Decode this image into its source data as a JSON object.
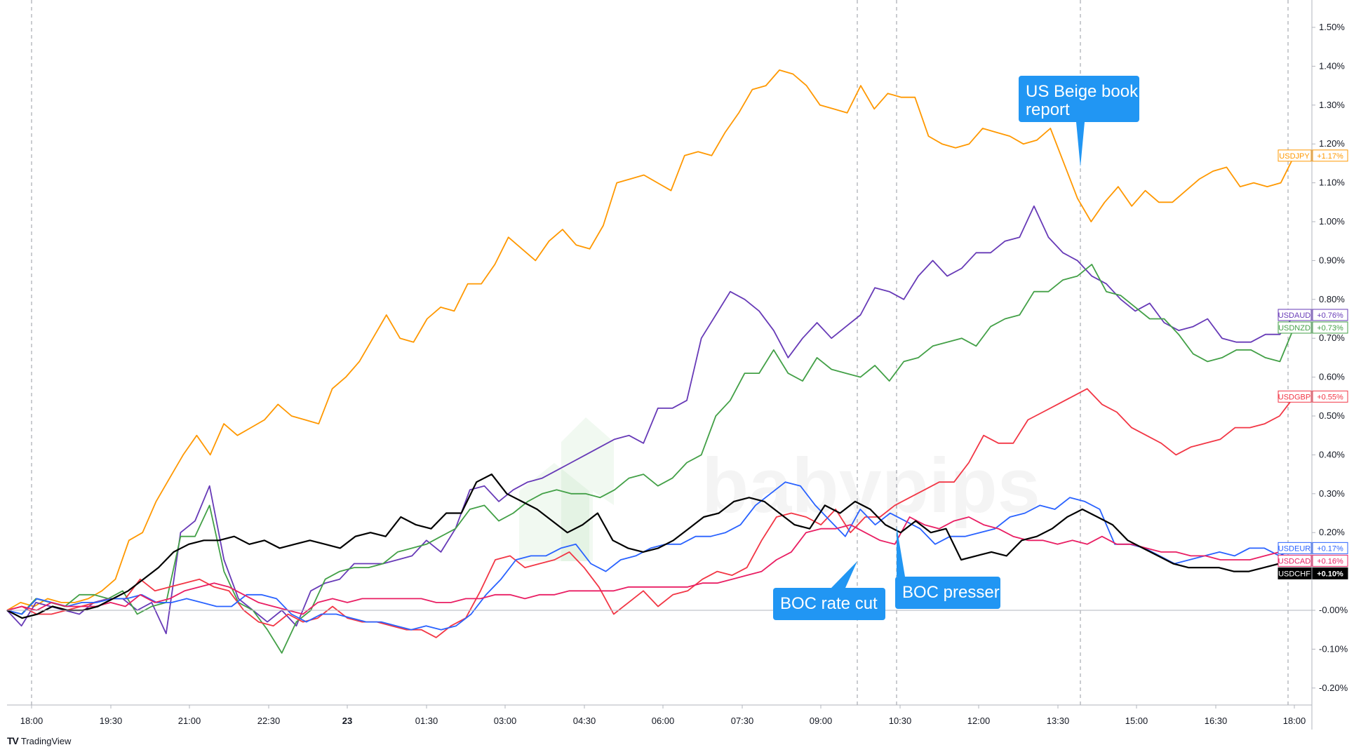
{
  "chart_data": {
    "type": "line",
    "x_ticks": [
      "18:00",
      "19:30",
      "21:00",
      "22:30",
      "23",
      "01:30",
      "03:00",
      "04:30",
      "06:00",
      "07:30",
      "09:00",
      "10:30",
      "12:00",
      "13:30",
      "15:00",
      "16:30",
      "18:00"
    ],
    "y_ticks": [
      "1.50%",
      "1.40%",
      "1.30%",
      "1.20%",
      "1.10%",
      "1.00%",
      "0.90%",
      "0.80%",
      "0.70%",
      "0.60%",
      "0.50%",
      "0.40%",
      "0.30%",
      "0.20%",
      "0.10%",
      "-0.00%",
      "-0.10%",
      "-0.20%"
    ],
    "ylim": [
      -0.25,
      1.58
    ],
    "series": [
      {
        "name": "USDJPY",
        "color": "#ff9800",
        "last_label": "+1.17%",
        "values": [
          0.0,
          0.02,
          0.01,
          0.03,
          0.02,
          0.02,
          0.03,
          0.05,
          0.08,
          0.18,
          0.2,
          0.28,
          0.34,
          0.4,
          0.45,
          0.4,
          0.48,
          0.45,
          0.47,
          0.49,
          0.53,
          0.5,
          0.49,
          0.48,
          0.57,
          0.6,
          0.64,
          0.7,
          0.76,
          0.7,
          0.69,
          0.75,
          0.78,
          0.77,
          0.84,
          0.84,
          0.89,
          0.96,
          0.93,
          0.9,
          0.95,
          0.98,
          0.94,
          0.93,
          0.99,
          1.1,
          1.11,
          1.12,
          1.1,
          1.08,
          1.17,
          1.18,
          1.17,
          1.23,
          1.28,
          1.34,
          1.35,
          1.39,
          1.38,
          1.35,
          1.3,
          1.29,
          1.28,
          1.35,
          1.29,
          1.33,
          1.32,
          1.32,
          1.22,
          1.2,
          1.19,
          1.2,
          1.24,
          1.23,
          1.22,
          1.2,
          1.21,
          1.24,
          1.15,
          1.06,
          1.0,
          1.05,
          1.09,
          1.04,
          1.08,
          1.05,
          1.05,
          1.08,
          1.11,
          1.13,
          1.14,
          1.09,
          1.1,
          1.09,
          1.1,
          1.17
        ]
      },
      {
        "name": "USDAUD",
        "color": "#673ab7",
        "last_label": "+0.76%",
        "values": [
          0.0,
          -0.04,
          0.02,
          0.01,
          0.0,
          -0.01,
          0.02,
          0.03,
          0.03,
          0.0,
          0.02,
          -0.06,
          0.2,
          0.23,
          0.32,
          0.13,
          0.03,
          0.0,
          -0.03,
          0.0,
          -0.04,
          0.05,
          0.07,
          0.08,
          0.12,
          0.12,
          0.12,
          0.13,
          0.14,
          0.18,
          0.15,
          0.21,
          0.31,
          0.32,
          0.28,
          0.31,
          0.33,
          0.34,
          0.36,
          0.38,
          0.4,
          0.42,
          0.44,
          0.45,
          0.43,
          0.52,
          0.52,
          0.54,
          0.7,
          0.76,
          0.82,
          0.8,
          0.77,
          0.72,
          0.65,
          0.7,
          0.74,
          0.7,
          0.73,
          0.76,
          0.83,
          0.82,
          0.8,
          0.86,
          0.9,
          0.86,
          0.88,
          0.92,
          0.92,
          0.95,
          0.96,
          1.04,
          0.96,
          0.92,
          0.9,
          0.86,
          0.84,
          0.8,
          0.77,
          0.79,
          0.74,
          0.72,
          0.73,
          0.75,
          0.7,
          0.69,
          0.69,
          0.71,
          0.71,
          0.76
        ]
      },
      {
        "name": "USDNZD",
        "color": "#43a047",
        "last_label": "+0.73%",
        "values": [
          0.0,
          -0.01,
          0.03,
          0.02,
          0.01,
          0.04,
          0.04,
          0.03,
          0.05,
          -0.01,
          0.01,
          0.02,
          0.19,
          0.19,
          0.27,
          0.1,
          0.02,
          0.0,
          -0.05,
          -0.11,
          -0.03,
          0.0,
          0.08,
          0.1,
          0.11,
          0.11,
          0.12,
          0.15,
          0.16,
          0.17,
          0.19,
          0.21,
          0.26,
          0.27,
          0.23,
          0.25,
          0.28,
          0.3,
          0.31,
          0.3,
          0.3,
          0.29,
          0.31,
          0.34,
          0.35,
          0.32,
          0.34,
          0.38,
          0.4,
          0.5,
          0.54,
          0.61,
          0.61,
          0.67,
          0.61,
          0.59,
          0.65,
          0.62,
          0.61,
          0.6,
          0.63,
          0.59,
          0.64,
          0.65,
          0.68,
          0.69,
          0.7,
          0.68,
          0.73,
          0.75,
          0.76,
          0.82,
          0.82,
          0.85,
          0.86,
          0.89,
          0.82,
          0.81,
          0.78,
          0.75,
          0.75,
          0.71,
          0.66,
          0.64,
          0.65,
          0.67,
          0.67,
          0.65,
          0.64,
          0.73
        ]
      },
      {
        "name": "USDGBP",
        "color": "#f23645",
        "last_label": "+0.55%",
        "values": [
          0.0,
          0.01,
          -0.01,
          -0.01,
          0.0,
          0.01,
          0.02,
          0.03,
          0.03,
          0.08,
          0.05,
          0.06,
          0.07,
          0.08,
          0.06,
          0.05,
          0.0,
          -0.03,
          -0.04,
          -0.01,
          -0.03,
          -0.02,
          0.01,
          -0.02,
          -0.03,
          -0.03,
          -0.04,
          -0.05,
          -0.05,
          -0.07,
          -0.04,
          -0.02,
          0.05,
          0.13,
          0.14,
          0.11,
          0.12,
          0.13,
          0.15,
          0.11,
          0.06,
          -0.01,
          0.02,
          0.05,
          0.01,
          0.04,
          0.05,
          0.08,
          0.1,
          0.09,
          0.11,
          0.18,
          0.24,
          0.25,
          0.24,
          0.22,
          0.26,
          0.2,
          0.24,
          0.24,
          0.27,
          0.29,
          0.31,
          0.33,
          0.33,
          0.38,
          0.45,
          0.43,
          0.43,
          0.49,
          0.51,
          0.53,
          0.55,
          0.57,
          0.53,
          0.51,
          0.47,
          0.45,
          0.43,
          0.4,
          0.42,
          0.43,
          0.44,
          0.47,
          0.47,
          0.48,
          0.5,
          0.55
        ]
      },
      {
        "name": "USDEUR",
        "color": "#2962ff",
        "last_label": "+0.17%",
        "values": [
          0.0,
          -0.01,
          0.03,
          0.02,
          0.01,
          0.02,
          0.02,
          0.03,
          0.03,
          0.04,
          0.02,
          0.02,
          0.03,
          0.02,
          0.01,
          0.01,
          0.04,
          0.04,
          0.03,
          -0.01,
          -0.03,
          -0.01,
          -0.01,
          -0.02,
          -0.03,
          -0.03,
          -0.04,
          -0.05,
          -0.04,
          -0.05,
          -0.04,
          -0.01,
          0.04,
          0.08,
          0.13,
          0.14,
          0.14,
          0.16,
          0.17,
          0.12,
          0.1,
          0.13,
          0.14,
          0.16,
          0.17,
          0.17,
          0.19,
          0.19,
          0.2,
          0.22,
          0.27,
          0.3,
          0.33,
          0.32,
          0.27,
          0.23,
          0.19,
          0.26,
          0.22,
          0.25,
          0.23,
          0.21,
          0.17,
          0.19,
          0.19,
          0.2,
          0.21,
          0.24,
          0.25,
          0.27,
          0.26,
          0.29,
          0.28,
          0.26,
          0.17,
          0.17,
          0.16,
          0.14,
          0.12,
          0.13,
          0.14,
          0.15,
          0.14,
          0.16,
          0.16,
          0.14,
          0.16
        ]
      },
      {
        "name": "USDCAD",
        "color": "#e91e63",
        "last_label": "+0.16%",
        "values": [
          0.0,
          0.01,
          0.0,
          0.02,
          0.01,
          0.01,
          0.01,
          0.02,
          0.01,
          0.04,
          0.02,
          0.03,
          0.05,
          0.06,
          0.07,
          0.06,
          0.04,
          0.02,
          0.01,
          0.0,
          -0.01,
          0.02,
          0.03,
          0.02,
          0.03,
          0.03,
          0.03,
          0.03,
          0.03,
          0.02,
          0.02,
          0.03,
          0.03,
          0.04,
          0.04,
          0.03,
          0.04,
          0.04,
          0.05,
          0.05,
          0.05,
          0.05,
          0.06,
          0.06,
          0.06,
          0.06,
          0.06,
          0.07,
          0.07,
          0.08,
          0.09,
          0.1,
          0.13,
          0.15,
          0.2,
          0.21,
          0.21,
          0.22,
          0.2,
          0.18,
          0.17,
          0.24,
          0.22,
          0.21,
          0.23,
          0.24,
          0.22,
          0.21,
          0.19,
          0.18,
          0.18,
          0.17,
          0.18,
          0.17,
          0.19,
          0.17,
          0.17,
          0.16,
          0.15,
          0.15,
          0.14,
          0.14,
          0.13,
          0.13,
          0.13,
          0.14,
          0.15,
          0.16
        ]
      },
      {
        "name": "USDCHF",
        "color": "#000000",
        "last_label": "+0.10%",
        "values": [
          0.0,
          -0.02,
          -0.01,
          0.01,
          0.0,
          0.0,
          0.01,
          0.03,
          0.05,
          0.08,
          0.11,
          0.15,
          0.17,
          0.18,
          0.18,
          0.19,
          0.17,
          0.18,
          0.16,
          0.17,
          0.18,
          0.17,
          0.16,
          0.19,
          0.2,
          0.19,
          0.24,
          0.22,
          0.21,
          0.25,
          0.25,
          0.33,
          0.35,
          0.3,
          0.28,
          0.26,
          0.23,
          0.2,
          0.22,
          0.25,
          0.18,
          0.16,
          0.15,
          0.16,
          0.18,
          0.21,
          0.24,
          0.25,
          0.28,
          0.29,
          0.28,
          0.25,
          0.22,
          0.21,
          0.27,
          0.25,
          0.28,
          0.26,
          0.22,
          0.2,
          0.23,
          0.2,
          0.21,
          0.13,
          0.14,
          0.15,
          0.14,
          0.18,
          0.19,
          0.21,
          0.24,
          0.26,
          0.24,
          0.22,
          0.18,
          0.16,
          0.14,
          0.12,
          0.11,
          0.11,
          0.11,
          0.1,
          0.1,
          0.11,
          0.12,
          0.14
        ]
      }
    ],
    "annotations": [
      {
        "text_lines": [
          "US Beige book",
          "report"
        ]
      },
      {
        "text_lines": [
          "BOC rate cut"
        ]
      },
      {
        "text_lines": [
          "BOC presser"
        ]
      }
    ],
    "watermark": "babypips"
  },
  "footer": {
    "brand": "TradingView",
    "logo": "TV"
  }
}
